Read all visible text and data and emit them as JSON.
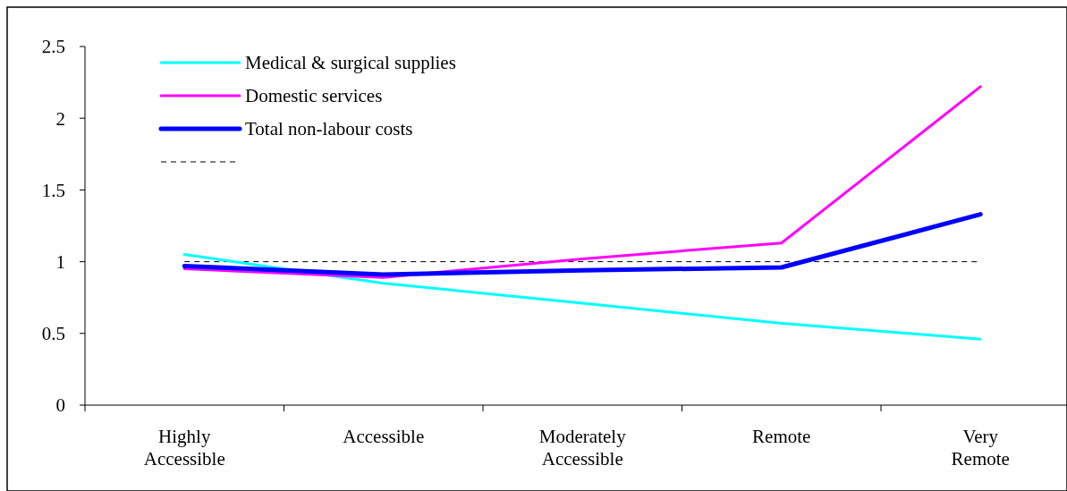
{
  "chart_data": {
    "type": "line",
    "categories": [
      "Highly Accessible",
      "Accessible",
      "Moderately Accessible",
      "Remote",
      "Very Remote"
    ],
    "series": [
      {
        "name": "Medical & surgical supplies",
        "color": "#00ffff",
        "values": [
          1.05,
          0.85,
          0.71,
          0.57,
          0.46
        ]
      },
      {
        "name": "Domestic services",
        "color": "#ff00ff",
        "values": [
          0.95,
          0.89,
          1.02,
          1.13,
          2.22
        ]
      },
      {
        "name": "Total non-labour costs",
        "color": "#0000ff",
        "values": [
          0.97,
          0.91,
          0.94,
          0.96,
          1.33
        ]
      }
    ],
    "ylim": [
      0,
      2.5
    ],
    "yticks": [
      0,
      0.5,
      1,
      1.5,
      2,
      2.5
    ],
    "ref_lines": [
      {
        "axis": "y",
        "value": 1,
        "color": "#000000",
        "line_style": "dashed"
      }
    ],
    "legend": "top left",
    "grid": false,
    "marker": "none",
    "line_style": "solid"
  }
}
